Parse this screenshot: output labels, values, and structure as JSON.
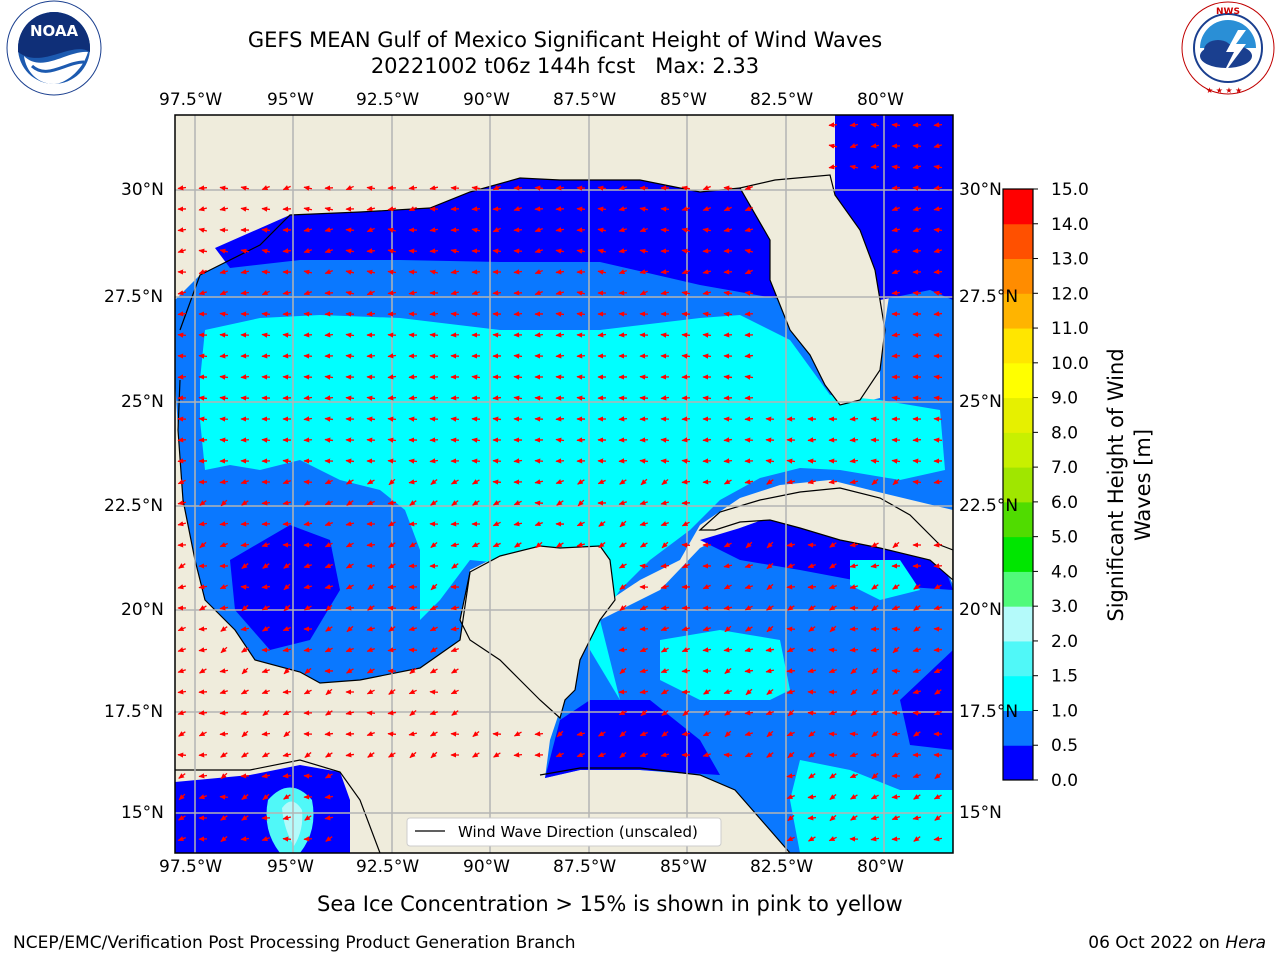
{
  "header": {
    "title_line1": "GEFS MEAN Gulf of Mexico Significant Height of Wind Waves",
    "title_line2": "20221002 t06z 144h fcst   Max: 2.33"
  },
  "logos": {
    "noaa_text": "NOAA",
    "noaa_ring": "NATIONAL OCEANIC AND ATMOSPHERIC ADMINISTRATION · U.S. DEPARTMENT OF COMMERCE",
    "nws_ring": "NATIONAL WEATHER SERVICE"
  },
  "map": {
    "lon_labels": [
      "97.5°W",
      "95°W",
      "92.5°W",
      "90°W",
      "87.5°W",
      "85°W",
      "82.5°W",
      "80°W"
    ],
    "lat_labels": [
      "30°N",
      "27.5°N",
      "25°N",
      "22.5°N",
      "20°N",
      "17.5°N",
      "15°N"
    ],
    "lon_range": [
      -98,
      -78.25
    ],
    "lat_range": [
      14,
      31.75
    ],
    "legend_label": "Wind Wave Direction (unscaled)",
    "colors": {
      "land": "#efecdc",
      "grid": "#b4b4b4",
      "arrow": "#ff0000"
    }
  },
  "colorbar": {
    "label_line1": "Significant Height of Wind",
    "label_line2": "Waves [m]",
    "ticks": [
      "0.0",
      "0.5",
      "1.0",
      "1.5",
      "2.0",
      "3.0",
      "4.0",
      "5.0",
      "6.0",
      "7.0",
      "8.0",
      "9.0",
      "10.0",
      "11.0",
      "12.0",
      "13.0",
      "14.0",
      "15.0"
    ],
    "colors": [
      "#0000ff",
      "#0a78ff",
      "#00ffff",
      "#50f8f8",
      "#b4fafa",
      "#50fa7a",
      "#00e600",
      "#50dc00",
      "#a0e600",
      "#c8f000",
      "#e6f000",
      "#ffff00",
      "#ffe600",
      "#ffb400",
      "#ff8c00",
      "#ff5000",
      "#ff0000"
    ]
  },
  "caption": "Sea Ice Concentration > 15% is shown in pink to yellow",
  "footer": {
    "left": "NCEP/EMC/Verification Post Processing Product Generation Branch",
    "right_date": "06 Oct 2022 on",
    "right_host": "Hera"
  }
}
